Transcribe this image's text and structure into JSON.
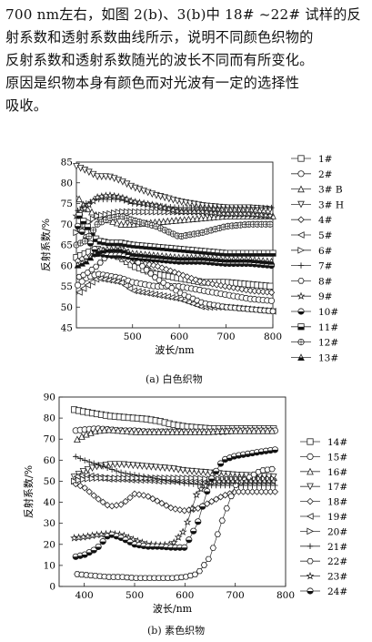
{
  "paragraph": {
    "lines": [
      "700 nm左右，如图 2(b)、3(b)中 18# ~22# 试样的反",
      "射系数和透射系数曲线所示，说明不同颜色织物的",
      "反射系数和透射系数随光的波长不同而有所变化。",
      "原因是织物本身有颜色而对光波有一定的选择性",
      "吸收。"
    ]
  },
  "charts": [
    {
      "caption": "(a) 白色织物",
      "chart_data": {
        "type": "line",
        "ylabel": "反射系数/%",
        "xlabel": "波长/nm",
        "xlim": [
          380,
          800
        ],
        "ylim": [
          45,
          85
        ],
        "xticks": [
          "500",
          "600",
          "700",
          "800"
        ],
        "yticks": [
          "45",
          "50",
          "55",
          "60",
          "65",
          "70",
          "75",
          "80",
          "85"
        ],
        "x": [
          380,
          400,
          425,
          450,
          475,
          500,
          550,
          600,
          650,
          700,
          750,
          800
        ],
        "series": [
          {
            "name": "1#",
            "marker": "square-open",
            "values": [
              62,
              63,
              64,
              63,
              62,
              60,
              58,
              57,
              56,
              56,
              55.5,
              55
            ]
          },
          {
            "name": "2#",
            "marker": "circle-open",
            "values": [
              55,
              57,
              58,
              57.5,
              57,
              56,
              55,
              55,
              54,
              53,
              52,
              51.5
            ]
          },
          {
            "name": "3# B",
            "marker": "triangle-up-open",
            "values": [
              77,
              74,
              72,
              71,
              70,
              70,
              70.5,
              71,
              71.5,
              72,
              72,
              72
            ]
          },
          {
            "name": "3# H",
            "marker": "triangle-down-open",
            "values": [
              84,
              83,
              81.5,
              81.5,
              80.5,
              79,
              77,
              75.5,
              74.5,
              74,
              74,
              73.5
            ]
          },
          {
            "name": "4#",
            "marker": "diamond-open",
            "values": [
              61,
              62,
              63,
              62.5,
              62,
              61,
              60,
              58,
              56,
              55,
              54,
              53.5
            ]
          },
          {
            "name": "5#",
            "marker": "triangle-left-open",
            "values": [
              53,
              55,
              57,
              56.5,
              56,
              54,
              53,
              52,
              50,
              50,
              49.5,
              49
            ]
          },
          {
            "name": "6#",
            "marker": "triangle-right-open",
            "values": [
              68,
              70,
              72,
              72.5,
              73,
              73,
              73,
              73,
              73,
              72.5,
              72.5,
              72
            ]
          },
          {
            "name": "7#",
            "marker": "plus",
            "values": [
              73,
              75,
              76,
              76,
              76,
              75,
              74.5,
              74,
              74,
              74,
              74,
              74
            ]
          },
          {
            "name": "8#",
            "marker": "hexagon-open",
            "values": [
              57,
              58,
              60,
              63,
              64,
              62,
              57,
              53.5,
              51,
              50,
              49.5,
              49
            ]
          },
          {
            "name": "9#",
            "marker": "star-open",
            "values": [
              72,
              74,
              76.5,
              77,
              76.5,
              75.5,
              74.5,
              73,
              73,
              72.5,
              72.5,
              72
            ]
          },
          {
            "name": "10#",
            "marker": "circle-half",
            "values": [
              70,
              67,
              63,
              62.5,
              62.5,
              62,
              61.5,
              61,
              61,
              60.5,
              60.5,
              60
            ]
          },
          {
            "name": "11#",
            "marker": "square-half",
            "values": [
              73,
              70,
              66,
              65.5,
              65.5,
              65,
              64.5,
              64,
              63.5,
              63,
              63,
              63
            ]
          },
          {
            "name": "12#",
            "marker": "circle-cross",
            "values": [
              65,
              66,
              70,
              71.5,
              72,
              71,
              69.5,
              67,
              68,
              69.5,
              70,
              70
            ]
          },
          {
            "name": "13#",
            "marker": "triangle-half",
            "values": [
              60,
              61,
              63.5,
              64,
              64,
              63,
              62.5,
              62,
              62,
              61.5,
              61.5,
              61
            ]
          }
        ]
      }
    },
    {
      "caption": "(b) 素色织物",
      "chart_data": {
        "type": "line",
        "ylabel": "反射系数/%",
        "xlabel": "波长/nm",
        "xlim": [
          350,
          800
        ],
        "ylim": [
          0,
          90
        ],
        "xticks": [
          "400",
          "500",
          "600",
          "700",
          "800"
        ],
        "yticks": [
          "0",
          "10",
          "20",
          "30",
          "40",
          "50",
          "60",
          "70",
          "80",
          "90"
        ],
        "x": [
          380,
          400,
          425,
          450,
          475,
          500,
          525,
          550,
          575,
          600,
          625,
          650,
          675,
          700,
          750,
          780
        ],
        "series": [
          {
            "name": "14#",
            "marker": "square-open",
            "values": [
              84,
              83,
              82,
              81,
              80.5,
              80,
              79.5,
              78.5,
              77,
              76,
              75.5,
              75,
              75,
              75,
              75,
              75
            ]
          },
          {
            "name": "15#",
            "marker": "circle-open",
            "values": [
              74,
              74.5,
              75,
              74.5,
              74,
              74,
              73.5,
              73.5,
              73.5,
              73.5,
              73.5,
              73.5,
              73.5,
              74,
              74,
              74
            ]
          },
          {
            "name": "16#",
            "marker": "triangle-up-open",
            "values": [
              69,
              72,
              74,
              74.5,
              74,
              73.5,
              73.5,
              73.5,
              73.5,
              73.5,
              73.5,
              73.5,
              74,
              74,
              74,
              74
            ]
          },
          {
            "name": "17#",
            "marker": "triangle-down-open",
            "values": [
              52,
              55,
              57,
              58,
              58,
              57.5,
              57,
              56.5,
              56,
              55,
              54.5,
              54,
              53.5,
              53,
              52.5,
              52
            ]
          },
          {
            "name": "18#",
            "marker": "diamond-open",
            "values": [
              49,
              47,
              42,
              38,
              39,
              44,
              43,
              40,
              37,
              36,
              37,
              40,
              43,
              45,
              45,
              45
            ]
          },
          {
            "name": "19#",
            "marker": "triangle-left-open",
            "values": [
              52,
              53,
              52,
              51,
              51,
              50.5,
              50.5,
              50,
              50,
              50,
              50,
              50,
              50,
              50,
              50,
              50
            ]
          },
          {
            "name": "20#",
            "marker": "triangle-right-open",
            "values": [
              50,
              51,
              51.5,
              51.5,
              51.5,
              51.5,
              51.5,
              51.5,
              51.5,
              51.5,
              51.5,
              51,
              51,
              51,
              51,
              51
            ]
          },
          {
            "name": "21#",
            "marker": "plus",
            "values": [
              62,
              60,
              58,
              56,
              54,
              53,
              52,
              51,
              50,
              49,
              48.5,
              48,
              48,
              48,
              48,
              48
            ]
          },
          {
            "name": "22#",
            "marker": "hexagon-open",
            "values": [
              6,
              5.5,
              5,
              4.5,
              4.5,
              4,
              4,
              4,
              4,
              4.5,
              6,
              14,
              32,
              48,
              55,
              56
            ]
          },
          {
            "name": "23#",
            "marker": "star-open",
            "values": [
              23,
              23.5,
              24.5,
              25,
              24.5,
              22,
              20,
              19.5,
              20,
              27,
              45,
              49.5,
              50,
              50,
              50,
              50
            ]
          },
          {
            "name": "24#",
            "marker": "circle-half",
            "values": [
              14,
              15,
              18,
              25,
              23,
              20,
              19,
              19,
              18.5,
              18.5,
              30,
              50,
              60,
              62,
              64,
              65
            ]
          }
        ]
      }
    }
  ]
}
